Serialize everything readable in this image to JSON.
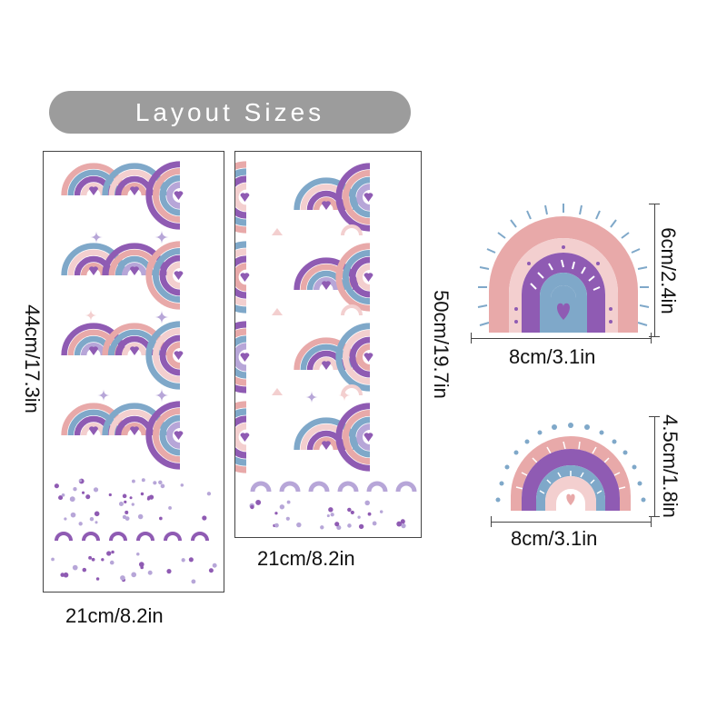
{
  "title": "Layout Sizes",
  "sheet_left": {
    "height_label": "44cm/17.3in",
    "width_label": "21cm/8.2in",
    "sheet_code": "GLB0? "
  },
  "sheet_right": {
    "height_label": "50cm/19.7in",
    "width_label": "21cm/8.2in"
  },
  "large_rainbow": {
    "height_label": "6cm/2.4in",
    "width_label": "8cm/3.1in"
  },
  "small_rainbow": {
    "height_label": "4.5cm/1.8in",
    "width_label": "8cm/3.1in"
  },
  "colors": {
    "pink": "#e8a9a9",
    "light_pink": "#f3cfcf",
    "purple": "#8f5bb3",
    "lavender": "#b7a6d8",
    "blue": "#7fa8c9",
    "pill": "#9c9c9c"
  },
  "icons": [
    "rainbow-decal-icon",
    "heart-icon",
    "sparkle-star-icon",
    "cloud-arc-icon",
    "dot-icon"
  ]
}
